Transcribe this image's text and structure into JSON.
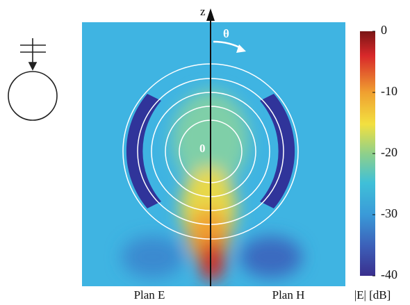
{
  "chart_data": {
    "type": "field-map",
    "axis_label": "z",
    "angle_label": "θ",
    "origin_label": "0",
    "x_labels": [
      "Plan E",
      "Plan H"
    ],
    "colorbar_label": "|E| [dB]",
    "ylim": [
      -40,
      0
    ],
    "yticks": [
      0,
      -10,
      -20,
      -30,
      -40
    ]
  }
}
